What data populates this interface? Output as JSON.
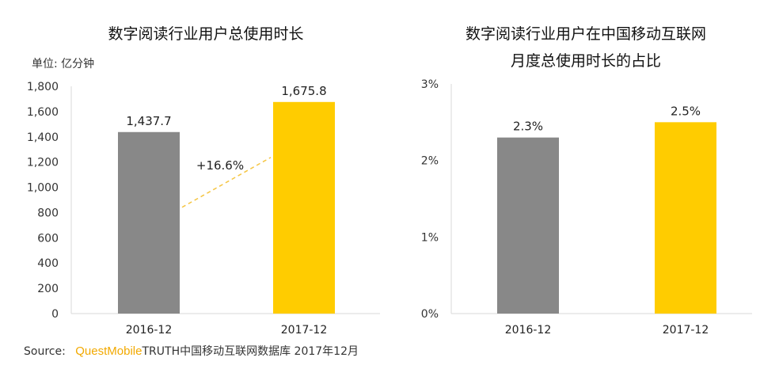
{
  "colors": {
    "gray": "#888888",
    "yellow": "#FFCC00",
    "dash": "#f5c542"
  },
  "chart_data": [
    {
      "type": "bar",
      "title": "数字阅读行业用户总使用时长",
      "unit": "单位: 亿分钟",
      "categories": [
        "2016-12",
        "2017-12"
      ],
      "values": [
        1437.7,
        1675.8
      ],
      "value_labels": [
        "1,437.7",
        "1,675.8"
      ],
      "ylim": [
        0,
        1800
      ],
      "yticks": [
        0,
        200,
        400,
        600,
        800,
        1000,
        1200,
        1400,
        1600,
        1800
      ],
      "ytick_labels": [
        "0",
        "200",
        "400",
        "600",
        "800",
        "1,000",
        "1,200",
        "1,400",
        "1,600",
        "1,800"
      ],
      "annotation": "+16.6%",
      "grid": false
    },
    {
      "type": "bar",
      "title_line1": "数字阅读行业用户在中国移动互联网",
      "title_line2": "月度总使用时长的占比",
      "categories": [
        "2016-12",
        "2017-12"
      ],
      "values": [
        2.3,
        2.5
      ],
      "value_labels": [
        "2.3%",
        "2.5%"
      ],
      "ylim": [
        0,
        3
      ],
      "yticks": [
        0,
        1,
        2,
        3
      ],
      "ytick_labels": [
        "0%",
        "1%",
        "2%",
        "3%"
      ],
      "grid": false
    }
  ],
  "source": {
    "label": "Source:",
    "brand": "QuestMobile",
    "text": "TRUTH中国移动互联网数据库 2017年12月"
  }
}
